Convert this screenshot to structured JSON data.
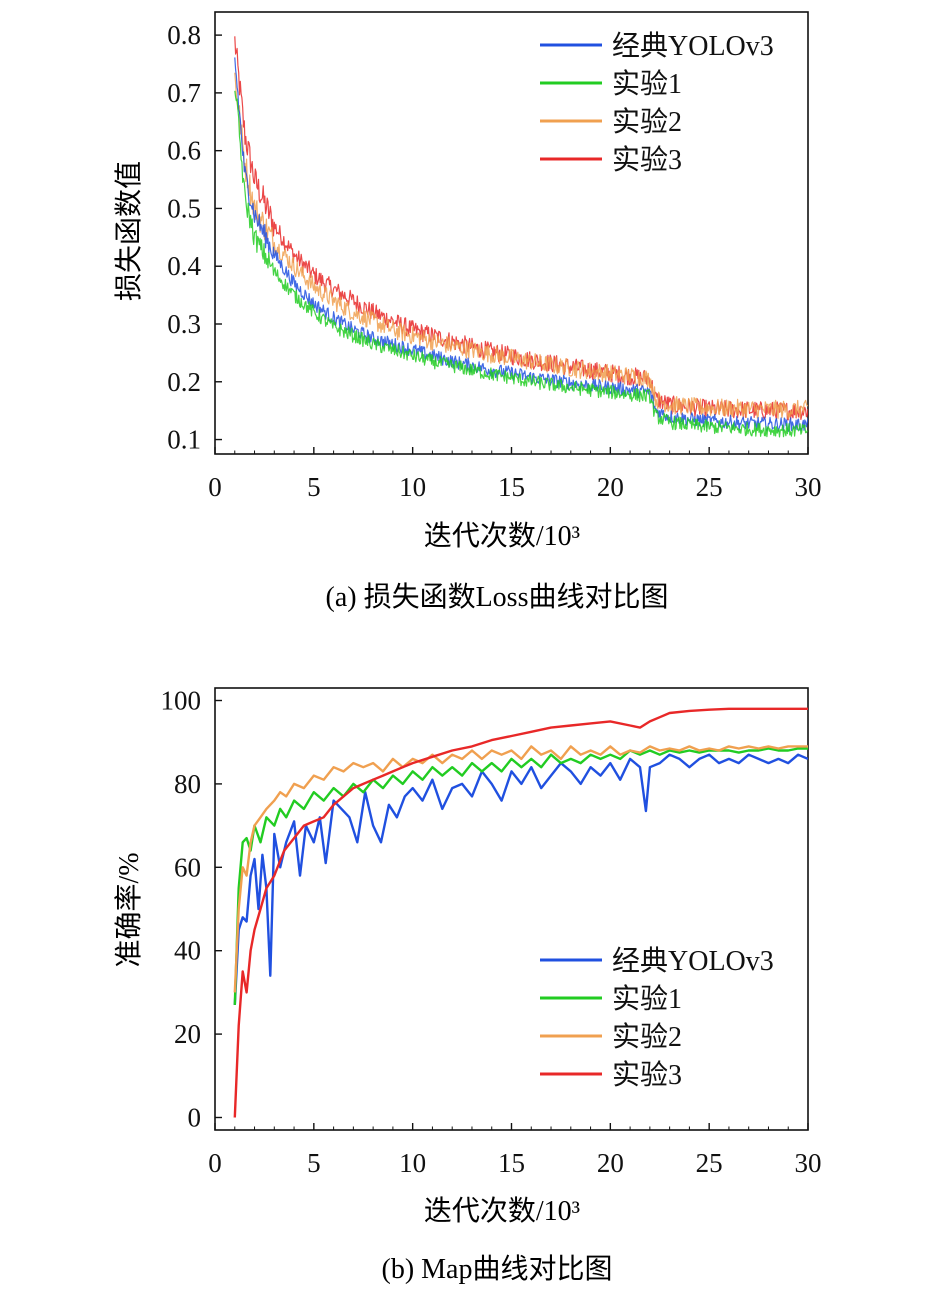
{
  "colors": {
    "classic": "#2050e0",
    "exp1": "#22cc22",
    "exp2": "#f0a050",
    "exp3": "#e82828",
    "axis": "#111111"
  },
  "chart_data": [
    {
      "type": "line",
      "title": "",
      "caption": "(a) 损失函数Loss曲线对比图",
      "xlabel": "迭代次数/10³",
      "ylabel": "损失函数值",
      "xlim": [
        0,
        30
      ],
      "ylim": [
        0.075,
        0.84
      ],
      "xticks": [
        "0",
        "5",
        "10",
        "15",
        "20",
        "25",
        "30"
      ],
      "yticks": [
        "0.1",
        "0.2",
        "0.3",
        "0.4",
        "0.5",
        "0.6",
        "0.7",
        "0.8"
      ],
      "legend_position": "top-right",
      "series": [
        {
          "name": "经典YOLOv3",
          "color_key": "classic",
          "noise": 0.012,
          "x": [
            1,
            1.5,
            2,
            3,
            4,
            5,
            6,
            7,
            8,
            9,
            10,
            11,
            12,
            13,
            14,
            15,
            16,
            17,
            18,
            19,
            20,
            21,
            22,
            22.3,
            23,
            24,
            25,
            26,
            27,
            28,
            29,
            30
          ],
          "y": [
            0.76,
            0.56,
            0.49,
            0.42,
            0.37,
            0.335,
            0.31,
            0.29,
            0.275,
            0.265,
            0.255,
            0.245,
            0.235,
            0.228,
            0.22,
            0.215,
            0.208,
            0.203,
            0.198,
            0.193,
            0.19,
            0.186,
            0.182,
            0.15,
            0.14,
            0.135,
            0.132,
            0.13,
            0.128,
            0.127,
            0.126,
            0.125
          ]
        },
        {
          "name": "实验1",
          "color_key": "exp1",
          "noise": 0.012,
          "x": [
            1,
            1.5,
            2,
            3,
            4,
            5,
            6,
            7,
            8,
            9,
            10,
            11,
            12,
            13,
            14,
            15,
            16,
            17,
            18,
            19,
            20,
            21,
            22,
            22.3,
            23,
            24,
            25,
            26,
            27,
            28,
            29,
            30
          ],
          "y": [
            0.72,
            0.52,
            0.45,
            0.39,
            0.35,
            0.32,
            0.295,
            0.28,
            0.265,
            0.255,
            0.245,
            0.235,
            0.228,
            0.22,
            0.213,
            0.207,
            0.2,
            0.195,
            0.19,
            0.186,
            0.182,
            0.178,
            0.175,
            0.14,
            0.13,
            0.125,
            0.122,
            0.12,
            0.118,
            0.117,
            0.116,
            0.115
          ]
        },
        {
          "name": "实验2",
          "color_key": "exp2",
          "noise": 0.016,
          "x": [
            1,
            1.5,
            2,
            3,
            4,
            5,
            6,
            7,
            8,
            9,
            10,
            11,
            12,
            13,
            14,
            15,
            16,
            17,
            18,
            19,
            20,
            21,
            22,
            22.3,
            23,
            24,
            25,
            26,
            27,
            28,
            29,
            30
          ],
          "y": [
            0.73,
            0.58,
            0.5,
            0.44,
            0.4,
            0.365,
            0.34,
            0.32,
            0.305,
            0.29,
            0.28,
            0.27,
            0.262,
            0.255,
            0.248,
            0.241,
            0.235,
            0.229,
            0.224,
            0.219,
            0.214,
            0.21,
            0.205,
            0.17,
            0.16,
            0.157,
            0.155,
            0.154,
            0.153,
            0.152,
            0.152,
            0.152
          ]
        },
        {
          "name": "实验3",
          "color_key": "exp3",
          "noise": 0.016,
          "x": [
            1,
            1.5,
            2,
            3,
            4,
            5,
            6,
            7,
            8,
            9,
            10,
            11,
            12,
            13,
            14,
            15,
            16,
            17,
            18,
            19,
            20,
            21,
            22,
            22.3,
            23,
            24,
            25,
            26,
            27,
            28,
            29,
            30
          ],
          "y": [
            0.79,
            0.63,
            0.55,
            0.47,
            0.42,
            0.385,
            0.36,
            0.34,
            0.32,
            0.305,
            0.29,
            0.28,
            0.27,
            0.26,
            0.252,
            0.245,
            0.238,
            0.232,
            0.226,
            0.22,
            0.215,
            0.21,
            0.205,
            0.17,
            0.16,
            0.156,
            0.153,
            0.152,
            0.151,
            0.15,
            0.15,
            0.15
          ]
        }
      ]
    },
    {
      "type": "line",
      "title": "",
      "caption": "(b) Map曲线对比图",
      "xlabel": "迭代次数/10³",
      "ylabel": "准确率/%",
      "xlim": [
        0,
        30
      ],
      "ylim": [
        -3,
        103
      ],
      "xticks": [
        "0",
        "5",
        "10",
        "15",
        "20",
        "25",
        "30"
      ],
      "yticks": [
        "0",
        "20",
        "40",
        "60",
        "80",
        "100"
      ],
      "legend_position": "bottom-right",
      "series": [
        {
          "name": "经典YOLOv3",
          "color_key": "classic",
          "x": [
            1,
            1.2,
            1.4,
            1.6,
            1.8,
            2,
            2.2,
            2.4,
            2.6,
            2.8,
            3,
            3.3,
            3.6,
            4,
            4.3,
            4.6,
            5,
            5.3,
            5.6,
            6,
            6.4,
            6.8,
            7.2,
            7.6,
            8,
            8.4,
            8.8,
            9.2,
            9.6,
            10,
            10.5,
            11,
            11.5,
            12,
            12.5,
            13,
            13.5,
            14,
            14.5,
            15,
            15.5,
            16,
            16.5,
            17,
            17.5,
            18,
            18.5,
            19,
            19.5,
            20,
            20.5,
            21,
            21.5,
            21.8,
            22,
            22.5,
            23,
            23.5,
            24,
            24.5,
            25,
            25.5,
            26,
            26.5,
            27,
            27.5,
            28,
            28.5,
            29,
            29.5,
            30
          ],
          "y": [
            27,
            45,
            48,
            47,
            58,
            62,
            50,
            63,
            55,
            34,
            68,
            60,
            66,
            71,
            58,
            70,
            66,
            72,
            61,
            76,
            74,
            72,
            66,
            78,
            70,
            66,
            75,
            72,
            77,
            79,
            76,
            81,
            74,
            79,
            80,
            77,
            83,
            80,
            76,
            83,
            80,
            84,
            79,
            82,
            85,
            83,
            80,
            84,
            82,
            85,
            81,
            86,
            84,
            73.5,
            84,
            85,
            87,
            86,
            84,
            86,
            87,
            85,
            86,
            85,
            87,
            86,
            85,
            86,
            85,
            87,
            86
          ]
        },
        {
          "name": "实验1",
          "color_key": "exp1",
          "x": [
            1,
            1.2,
            1.4,
            1.6,
            1.8,
            2,
            2.3,
            2.6,
            3,
            3.3,
            3.6,
            4,
            4.5,
            5,
            5.5,
            6,
            6.5,
            7,
            7.5,
            8,
            8.5,
            9,
            9.5,
            10,
            10.5,
            11,
            11.5,
            12,
            12.5,
            13,
            13.5,
            14,
            14.5,
            15,
            15.5,
            16,
            16.5,
            17,
            17.5,
            18,
            18.5,
            19,
            19.5,
            20,
            20.5,
            21,
            21.5,
            22,
            22.5,
            23,
            23.5,
            24,
            24.5,
            25,
            25.5,
            26,
            26.5,
            27,
            27.5,
            28,
            28.5,
            29,
            29.5,
            30
          ],
          "y": [
            27,
            55,
            66,
            67,
            64,
            70,
            66,
            72,
            70,
            74,
            72,
            76,
            74,
            78,
            76,
            79,
            77,
            80,
            78,
            81,
            79,
            82,
            80,
            83,
            81,
            84,
            82,
            84,
            82,
            85,
            83,
            85,
            83,
            86,
            84,
            86,
            84,
            87,
            85,
            86,
            85,
            87,
            86,
            87,
            86,
            88,
            87,
            88,
            87,
            88,
            87.5,
            88,
            87.5,
            88,
            88,
            88,
            87.5,
            88,
            88,
            88.5,
            88,
            88,
            88.5,
            88.5
          ]
        },
        {
          "name": "实验2",
          "color_key": "exp2",
          "x": [
            1,
            1.2,
            1.4,
            1.6,
            1.8,
            2,
            2.3,
            2.6,
            3,
            3.3,
            3.6,
            4,
            4.5,
            5,
            5.5,
            6,
            6.5,
            7,
            7.5,
            8,
            8.5,
            9,
            9.5,
            10,
            10.5,
            11,
            11.5,
            12,
            12.5,
            13,
            13.5,
            14,
            14.5,
            15,
            15.5,
            16,
            16.5,
            17,
            17.5,
            18,
            18.5,
            19,
            19.5,
            20,
            20.5,
            21,
            21.5,
            22,
            22.5,
            23,
            23.5,
            24,
            24.5,
            25,
            25.5,
            26,
            26.5,
            27,
            27.5,
            28,
            28.5,
            29,
            29.5,
            30
          ],
          "y": [
            30,
            50,
            60,
            58,
            66,
            70,
            72,
            74,
            76,
            78,
            77,
            80,
            79,
            82,
            81,
            84,
            83,
            85,
            84,
            85,
            83,
            86,
            84,
            86,
            85,
            87,
            85,
            87,
            86,
            88,
            86,
            88,
            87,
            88,
            86,
            89,
            87,
            88,
            86,
            89,
            87,
            88,
            87,
            89,
            87,
            88,
            87.5,
            89,
            88,
            88.5,
            88,
            89,
            88,
            88.5,
            88,
            89,
            88.5,
            89,
            88.5,
            89,
            88.5,
            89,
            89,
            89
          ]
        },
        {
          "name": "实验3",
          "color_key": "exp3",
          "x": [
            1,
            1.2,
            1.4,
            1.6,
            1.8,
            2,
            2.3,
            2.6,
            3,
            3.5,
            4,
            4.5,
            5,
            5.5,
            6,
            6.5,
            7,
            7.5,
            8,
            8.5,
            9,
            9.5,
            10,
            11,
            12,
            13,
            14,
            15,
            16,
            17,
            18,
            19,
            20,
            21,
            21.5,
            22,
            22.5,
            23,
            24,
            25,
            26,
            27,
            28,
            29,
            30
          ],
          "y": [
            0,
            22,
            35,
            30,
            40,
            45,
            50,
            55,
            58,
            64,
            67,
            70,
            71,
            72,
            75,
            77,
            79,
            80,
            81,
            82,
            83,
            84,
            85,
            86.5,
            88,
            89,
            90.5,
            91.5,
            92.5,
            93.5,
            94,
            94.5,
            95,
            94,
            93.5,
            95,
            96,
            97,
            97.5,
            97.8,
            98,
            98,
            98,
            98,
            98
          ]
        }
      ]
    }
  ]
}
